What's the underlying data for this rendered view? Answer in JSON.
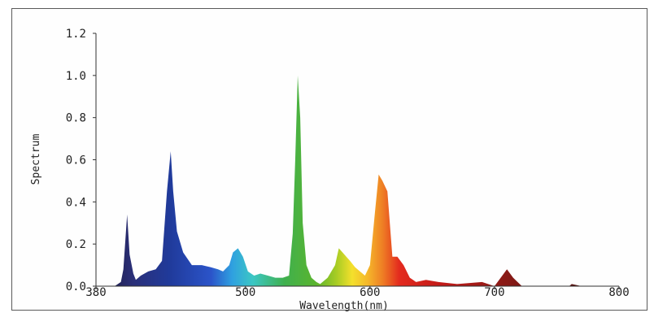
{
  "chart_data": {
    "type": "area",
    "title": "",
    "xlabel": "Wavelength(nm)",
    "ylabel": "Spectrum",
    "xlim": [
      380,
      800
    ],
    "ylim": [
      0,
      1.2
    ],
    "x_ticks": [
      380,
      500,
      600,
      700,
      800
    ],
    "y_ticks": [
      0.0,
      0.2,
      0.4,
      0.6,
      0.8,
      1.0,
      1.2
    ],
    "x_tick_labels": [
      "380",
      "500",
      "600",
      "700",
      "800"
    ],
    "y_tick_labels": [
      "0.0",
      "0.2",
      "0.4",
      "0.6",
      "0.8",
      "1.0",
      "1.2"
    ],
    "grid": false,
    "fill": "wavelength-color gradient",
    "series": [
      {
        "x": [
          380,
          395,
          400,
          402,
          405,
          407,
          410,
          412,
          416,
          422,
          428,
          433,
          437,
          440,
          442,
          445,
          450,
          457,
          465,
          472,
          478,
          482,
          487,
          490,
          494,
          498,
          502,
          507,
          512,
          518,
          524,
          530,
          535,
          538,
          540,
          542,
          544,
          546,
          549,
          553,
          557,
          560,
          566,
          572,
          575,
          578,
          581,
          584,
          588,
          592,
          596,
          600,
          604,
          607,
          610,
          614,
          618,
          622,
          627,
          632,
          637,
          645,
          655,
          670,
          690,
          700,
          705,
          710,
          715,
          722,
          740,
          760,
          762,
          770,
          780,
          800
        ],
        "y": [
          0.0,
          0.0,
          0.02,
          0.08,
          0.34,
          0.15,
          0.06,
          0.03,
          0.05,
          0.07,
          0.08,
          0.12,
          0.45,
          0.64,
          0.45,
          0.26,
          0.16,
          0.1,
          0.1,
          0.09,
          0.08,
          0.07,
          0.1,
          0.16,
          0.18,
          0.14,
          0.07,
          0.05,
          0.06,
          0.05,
          0.04,
          0.04,
          0.05,
          0.25,
          0.6,
          1.0,
          0.8,
          0.3,
          0.1,
          0.04,
          0.02,
          0.01,
          0.04,
          0.1,
          0.18,
          0.16,
          0.14,
          0.12,
          0.09,
          0.07,
          0.05,
          0.1,
          0.35,
          0.53,
          0.5,
          0.45,
          0.14,
          0.14,
          0.1,
          0.04,
          0.02,
          0.03,
          0.02,
          0.01,
          0.02,
          0.0,
          0.04,
          0.08,
          0.04,
          0.0,
          0.0,
          0.0,
          0.01,
          0.0,
          0.0,
          0.0
        ]
      }
    ]
  }
}
